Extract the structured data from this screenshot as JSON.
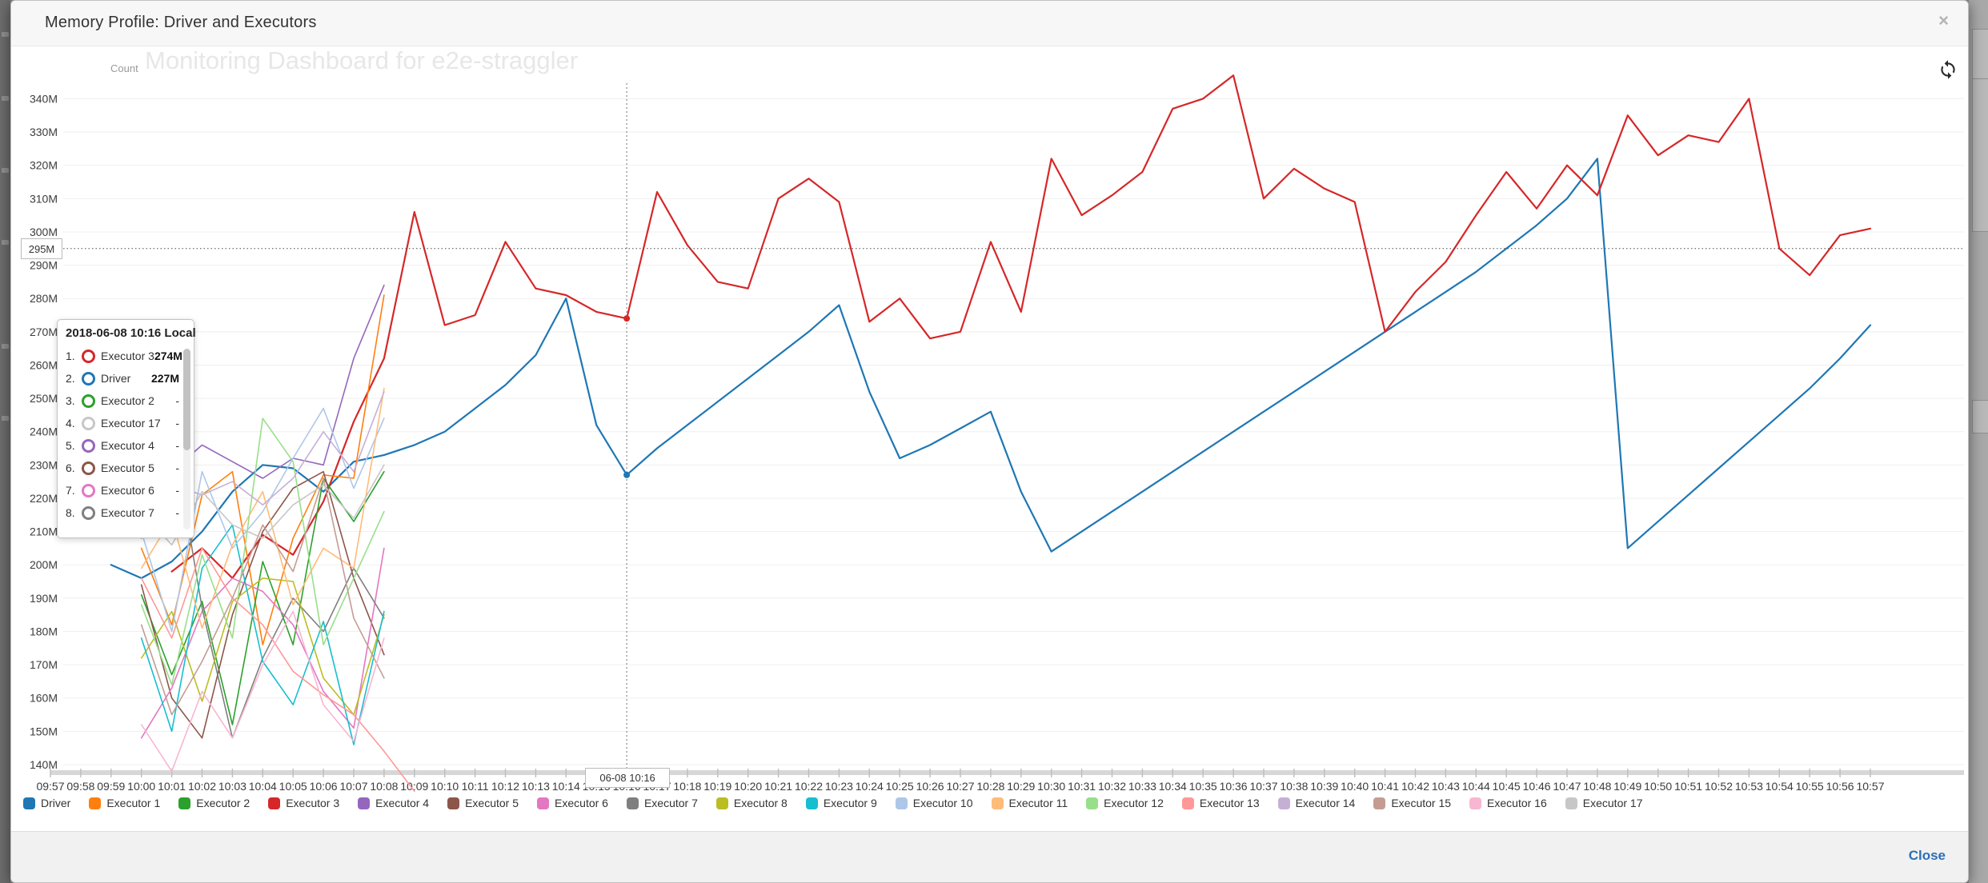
{
  "modal": {
    "title": "Memory Profile: Driver and Executors",
    "close_x": "×",
    "footer_close_label": "Close"
  },
  "background_watermark": "Monitoring Dashboard for e2e-straggler",
  "chart": {
    "count_label": "Count",
    "y_hover": {
      "label": "295M",
      "value": 295
    },
    "crosshair": {
      "minute": 19,
      "time_label": "06-08 10:16"
    },
    "tooltip": {
      "header": "2018-06-08 10:16 Local",
      "rows": [
        {
          "idx": "1.",
          "name": "Executor 3",
          "value": "274M",
          "color": "#d62728"
        },
        {
          "idx": "2.",
          "name": "Driver",
          "value": "227M",
          "color": "#1f77b4"
        },
        {
          "idx": "3.",
          "name": "Executor 2",
          "value": "-",
          "color": "#2ca02c"
        },
        {
          "idx": "4.",
          "name": "Executor 17",
          "value": "-",
          "color": "#c7c7c7"
        },
        {
          "idx": "5.",
          "name": "Executor 4",
          "value": "-",
          "color": "#9467bd"
        },
        {
          "idx": "6.",
          "name": "Executor 5",
          "value": "-",
          "color": "#8c564b"
        },
        {
          "idx": "7.",
          "name": "Executor 6",
          "value": "-",
          "color": "#e377c2"
        },
        {
          "idx": "8.",
          "name": "Executor 7",
          "value": "-",
          "color": "#7f7f7f"
        }
      ]
    }
  },
  "chart_data": {
    "type": "line",
    "title": "Memory Profile: Driver and Executors",
    "ylabel": "Count",
    "unit": "M",
    "grid": "horizontal",
    "legend_position": "bottom",
    "ylim": [
      135,
      350
    ],
    "y_ticks": [
      "140M",
      "150M",
      "160M",
      "170M",
      "180M",
      "190M",
      "200M",
      "210M",
      "220M",
      "230M",
      "240M",
      "250M",
      "260M",
      "270M",
      "280M",
      "290M",
      "300M",
      "310M",
      "320M",
      "330M",
      "340M"
    ],
    "x_ticks": [
      "09:57",
      "09:58",
      "09:59",
      "10:00",
      "10:01",
      "10:02",
      "10:03",
      "10:04",
      "10:05",
      "10:06",
      "10:07",
      "10:08",
      "10:09",
      "10:10",
      "10:11",
      "10:12",
      "10:13",
      "10:14",
      "10:15",
      "10:16",
      "10:17",
      "10:18",
      "10:19",
      "10:20",
      "10:21",
      "10:22",
      "10:23",
      "10:24",
      "10:25",
      "10:26",
      "10:27",
      "10:28",
      "10:29",
      "10:30",
      "10:31",
      "10:32",
      "10:33",
      "10:34",
      "10:35",
      "10:36",
      "10:37",
      "10:38",
      "10:39",
      "10:40",
      "10:41",
      "10:42",
      "10:43",
      "10:44",
      "10:45",
      "10:46",
      "10:47",
      "10:48",
      "10:49",
      "10:50",
      "10:51",
      "10:52",
      "10:53",
      "10:54",
      "10:55",
      "10:56",
      "10:57"
    ],
    "series": [
      {
        "name": "Driver",
        "color": "#1f77b4",
        "width": 2.2,
        "start_minute": 2,
        "values": [
          200,
          196,
          201,
          210,
          222,
          230,
          229,
          222,
          231,
          233,
          236,
          240,
          247,
          254,
          263,
          280,
          242,
          227,
          235,
          242,
          249,
          256,
          263,
          270,
          278,
          252,
          232,
          236,
          241,
          246,
          222,
          204,
          210,
          216,
          222,
          228,
          234,
          240,
          246,
          252,
          258,
          264,
          270,
          276,
          282,
          288,
          295,
          302,
          310,
          322,
          205,
          213,
          221,
          229,
          237,
          245,
          253,
          262,
          272
        ]
      },
      {
        "name": "Executor 3",
        "color": "#d62728",
        "width": 2.2,
        "start_minute": 4,
        "values": [
          198,
          205,
          196,
          209,
          203,
          219,
          243,
          262,
          306,
          272,
          275,
          297,
          283,
          281,
          276,
          274,
          312,
          296,
          285,
          283,
          310,
          316,
          309,
          273,
          280,
          268,
          270,
          297,
          276,
          322,
          305,
          311,
          318,
          337,
          340,
          347,
          310,
          319,
          313,
          309,
          270,
          282,
          291,
          305,
          318,
          307,
          320,
          311,
          335,
          323,
          329,
          327,
          340,
          295,
          287,
          299,
          301
        ]
      },
      {
        "name": "Executor 1",
        "color": "#ff7f0e",
        "width": 1.6,
        "start_minute": 3,
        "values": [
          205,
          182,
          221,
          228,
          176,
          208,
          227,
          226,
          281
        ]
      },
      {
        "name": "Executor 2",
        "color": "#2ca02c",
        "width": 1.6,
        "start_minute": 3,
        "values": [
          191,
          167,
          189,
          152,
          201,
          176,
          226,
          213,
          228
        ]
      },
      {
        "name": "Executor 4",
        "color": "#9467bd",
        "width": 1.6,
        "start_minute": 3,
        "values": [
          233,
          228,
          236,
          231,
          226,
          232,
          230,
          262,
          284
        ]
      },
      {
        "name": "Executor 5",
        "color": "#8c564b",
        "width": 1.6,
        "start_minute": 3,
        "values": [
          194,
          160,
          148,
          185,
          210,
          223,
          228,
          196,
          173
        ]
      },
      {
        "name": "Executor 6",
        "color": "#e377c2",
        "width": 1.6,
        "start_minute": 3,
        "values": [
          148,
          163,
          186,
          196,
          192,
          182,
          162,
          151,
          205
        ]
      },
      {
        "name": "Executor 7",
        "color": "#7f7f7f",
        "width": 1.6,
        "start_minute": 3,
        "values": [
          208,
          241,
          187,
          148,
          172,
          190,
          180,
          199,
          184
        ]
      },
      {
        "name": "Executor 8",
        "color": "#bcbd22",
        "width": 1.6,
        "start_minute": 3,
        "values": [
          172,
          186,
          159,
          189,
          196,
          195,
          166,
          155,
          185
        ]
      },
      {
        "name": "Executor 9",
        "color": "#17becf",
        "width": 1.6,
        "start_minute": 3,
        "values": [
          178,
          150,
          199,
          212,
          171,
          158,
          183,
          146,
          186
        ]
      },
      {
        "name": "Executor 10",
        "color": "#aec7e8",
        "width": 1.6,
        "start_minute": 3,
        "values": [
          210,
          180,
          228,
          205,
          216,
          232,
          247,
          223,
          244
        ]
      },
      {
        "name": "Executor 11",
        "color": "#ffbb78",
        "width": 1.6,
        "start_minute": 3,
        "values": [
          199,
          214,
          181,
          206,
          222,
          188,
          205,
          199,
          253
        ]
      },
      {
        "name": "Executor 12",
        "color": "#98df8a",
        "width": 1.6,
        "start_minute": 3,
        "values": [
          188,
          164,
          203,
          178,
          244,
          231,
          176,
          196,
          216
        ]
      },
      {
        "name": "Executor 13",
        "color": "#ff9896",
        "width": 1.6,
        "start_minute": 3,
        "values": [
          196,
          178,
          205,
          190,
          182,
          168,
          161,
          155,
          144,
          132
        ]
      },
      {
        "name": "Executor 14",
        "color": "#c5b0d5",
        "width": 1.6,
        "start_minute": 3,
        "values": [
          226,
          224,
          221,
          225,
          218,
          226,
          240,
          228,
          252
        ]
      },
      {
        "name": "Executor 15",
        "color": "#c49c94",
        "width": 1.6,
        "start_minute": 3,
        "values": [
          182,
          155,
          171,
          190,
          212,
          198,
          226,
          184,
          166
        ]
      },
      {
        "name": "Executor 16",
        "color": "#f7b6d2",
        "width": 1.6,
        "start_minute": 3,
        "values": [
          152,
          138,
          162,
          148,
          170,
          186,
          158,
          147,
          178
        ]
      },
      {
        "name": "Executor 17",
        "color": "#c7c7c7",
        "width": 1.6,
        "start_minute": 3,
        "values": [
          216,
          206,
          222,
          212,
          208,
          218,
          224,
          214,
          230
        ]
      }
    ]
  },
  "legend": {
    "items": [
      {
        "label": "Driver",
        "color": "#1f77b4"
      },
      {
        "label": "Executor 1",
        "color": "#ff7f0e"
      },
      {
        "label": "Executor 2",
        "color": "#2ca02c"
      },
      {
        "label": "Executor 3",
        "color": "#d62728"
      },
      {
        "label": "Executor 4",
        "color": "#9467bd"
      },
      {
        "label": "Executor 5",
        "color": "#8c564b"
      },
      {
        "label": "Executor 6",
        "color": "#e377c2"
      },
      {
        "label": "Executor 7",
        "color": "#7f7f7f"
      },
      {
        "label": "Executor 8",
        "color": "#bcbd22"
      },
      {
        "label": "Executor 9",
        "color": "#17becf"
      },
      {
        "label": "Executor 10",
        "color": "#aec7e8"
      },
      {
        "label": "Executor 11",
        "color": "#ffbb78"
      },
      {
        "label": "Executor 12",
        "color": "#98df8a"
      },
      {
        "label": "Executor 13",
        "color": "#ff9896"
      },
      {
        "label": "Executor 14",
        "color": "#c5b0d5"
      },
      {
        "label": "Executor 15",
        "color": "#c49c94"
      },
      {
        "label": "Executor 16",
        "color": "#f7b6d2"
      },
      {
        "label": "Executor 17",
        "color": "#c7c7c7"
      }
    ]
  }
}
